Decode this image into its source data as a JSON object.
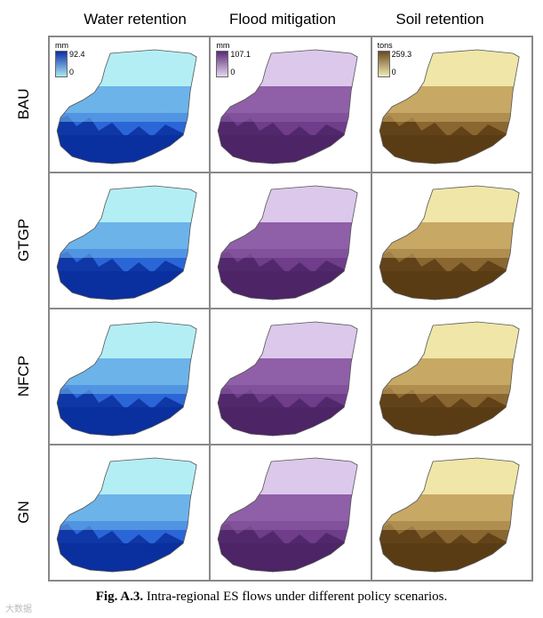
{
  "columns": [
    "Water retention",
    "Flood mitigation",
    "Soil retention"
  ],
  "rows": [
    "BAU",
    "GTGP",
    "NFCP",
    "GN"
  ],
  "legends": [
    {
      "unit": "mm",
      "max": "92.4",
      "min": "0",
      "high_color": "#0a2fa8",
      "low_color": "#a8e8f4"
    },
    {
      "unit": "mm",
      "max": "107.1",
      "min": "0",
      "high_color": "#5b2a78",
      "low_color": "#e4d6ec"
    },
    {
      "unit": "tons",
      "max": "259.3",
      "min": "0",
      "high_color": "#6b4a1f",
      "low_color": "#f2eab8"
    }
  ],
  "caption": {
    "label": "Fig. A.3.",
    "text": " Intra-regional ES flows under different policy scenarios."
  },
  "watermark": "大数据"
}
